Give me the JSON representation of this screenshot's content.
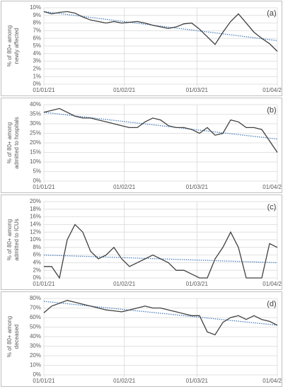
{
  "chart_data": [
    {
      "type": "line",
      "annotation": "(a)",
      "y_label": [
        "% of 80+ among",
        "newly affected"
      ],
      "x": [
        0,
        3,
        6,
        9,
        12,
        15,
        18,
        21,
        24,
        27,
        30,
        33,
        36,
        39,
        42,
        45,
        48,
        51,
        54,
        57,
        60,
        63,
        66,
        69,
        72,
        75,
        78,
        81,
        84,
        87,
        90
      ],
      "xlim": [
        0,
        90
      ],
      "xticks": [
        {
          "value": 0,
          "label": "01/01/21"
        },
        {
          "value": 31,
          "label": "01/02/21"
        },
        {
          "value": 59,
          "label": "01/03/21"
        },
        {
          "value": 90,
          "label": "01/04/2"
        }
      ],
      "ylim": [
        0,
        10
      ],
      "yticks": [
        {
          "value": 0,
          "label": "0%"
        },
        {
          "value": 1,
          "label": "1%"
        },
        {
          "value": 2,
          "label": "2%"
        },
        {
          "value": 3,
          "label": "3%"
        },
        {
          "value": 4,
          "label": "4%"
        },
        {
          "value": 5,
          "label": "5%"
        },
        {
          "value": 6,
          "label": "6%"
        },
        {
          "value": 7,
          "label": "7%"
        },
        {
          "value": 8,
          "label": "8%"
        },
        {
          "value": 9,
          "label": "9%"
        },
        {
          "value": 10,
          "label": "10%"
        }
      ],
      "grid": true,
      "series": [
        {
          "color": "#404040",
          "values": [
            9.5,
            9.2,
            9.4,
            9.5,
            9.3,
            8.8,
            8.4,
            8.2,
            8.0,
            8.2,
            8.0,
            8.1,
            8.2,
            8.0,
            7.7,
            7.5,
            7.3,
            7.5,
            7.9,
            8.0,
            7.2,
            6.2,
            5.2,
            6.8,
            8.2,
            9.2,
            8.0,
            6.8,
            6.0,
            5.3,
            4.3
          ]
        }
      ],
      "trend": {
        "color": "#4a7ebb",
        "values": [
          9.5,
          5.7
        ]
      }
    },
    {
      "type": "line",
      "annotation": "(b)",
      "y_label": [
        "% of 80+ among",
        "admitted to hospitals"
      ],
      "x": [
        0,
        3,
        6,
        9,
        12,
        15,
        18,
        21,
        24,
        27,
        30,
        33,
        36,
        39,
        42,
        45,
        48,
        51,
        54,
        57,
        60,
        63,
        66,
        69,
        72,
        75,
        78,
        81,
        84,
        87,
        90
      ],
      "xlim": [
        0,
        90
      ],
      "xticks": [
        {
          "value": 0,
          "label": "01/01/21"
        },
        {
          "value": 31,
          "label": "01/02/21"
        },
        {
          "value": 59,
          "label": "01/03/21"
        },
        {
          "value": 90,
          "label": "01/04/2"
        }
      ],
      "ylim": [
        0,
        40
      ],
      "yticks": [
        {
          "value": 0,
          "label": "0%"
        },
        {
          "value": 5,
          "label": "5%"
        },
        {
          "value": 10,
          "label": "10%"
        },
        {
          "value": 15,
          "label": "15%"
        },
        {
          "value": 20,
          "label": "20%"
        },
        {
          "value": 25,
          "label": "25%"
        },
        {
          "value": 30,
          "label": "30%"
        },
        {
          "value": 35,
          "label": "35%"
        },
        {
          "value": 40,
          "label": "40%"
        }
      ],
      "grid": true,
      "series": [
        {
          "color": "#404040",
          "values": [
            36,
            37,
            38,
            36,
            34,
            33,
            33,
            32,
            31,
            30,
            29,
            28,
            28,
            31,
            33,
            32,
            29,
            28,
            28,
            27,
            25,
            28,
            24,
            25,
            32,
            31,
            28,
            28,
            27,
            21,
            15
          ]
        }
      ],
      "trend": {
        "color": "#4a7ebb",
        "values": [
          36,
          22
        ]
      }
    },
    {
      "type": "line",
      "annotation": "(c)",
      "y_label": [
        "% of 80+ among",
        "admitted to ICUs"
      ],
      "x": [
        0,
        3,
        6,
        9,
        12,
        15,
        18,
        21,
        24,
        27,
        30,
        33,
        36,
        39,
        42,
        45,
        48,
        51,
        54,
        57,
        60,
        63,
        66,
        69,
        72,
        75,
        78,
        81,
        84,
        87,
        90
      ],
      "xlim": [
        0,
        90
      ],
      "xticks": [
        {
          "value": 0,
          "label": "01/01/21"
        },
        {
          "value": 31,
          "label": "01/02/21"
        },
        {
          "value": 59,
          "label": "01/03/21"
        },
        {
          "value": 90,
          "label": "01/04/2"
        }
      ],
      "ylim": [
        0,
        20
      ],
      "yticks": [
        {
          "value": 0,
          "label": "0%"
        },
        {
          "value": 2,
          "label": "2%"
        },
        {
          "value": 4,
          "label": "4%"
        },
        {
          "value": 6,
          "label": "6%"
        },
        {
          "value": 8,
          "label": "8%"
        },
        {
          "value": 10,
          "label": "10%"
        },
        {
          "value": 12,
          "label": "12%"
        },
        {
          "value": 14,
          "label": "14%"
        },
        {
          "value": 16,
          "label": "16%"
        },
        {
          "value": 18,
          "label": "18%"
        },
        {
          "value": 20,
          "label": "20%"
        }
      ],
      "grid": true,
      "series": [
        {
          "color": "#404040",
          "values": [
            3,
            3,
            0,
            10,
            14,
            12,
            7,
            5,
            6,
            8,
            5,
            3,
            4,
            5,
            6,
            5,
            4,
            2,
            2,
            1,
            0,
            0,
            5,
            8,
            12,
            8,
            0,
            0,
            0,
            9,
            8
          ]
        }
      ],
      "trend": {
        "color": "#4a7ebb",
        "values": [
          6,
          4
        ]
      }
    },
    {
      "type": "line",
      "annotation": "(d)",
      "y_label": [
        "% of 80+ among",
        "deceased"
      ],
      "x": [
        0,
        3,
        6,
        9,
        12,
        15,
        18,
        21,
        24,
        27,
        30,
        33,
        36,
        39,
        42,
        45,
        48,
        51,
        54,
        57,
        60,
        63,
        66,
        69,
        72,
        75,
        78,
        81,
        84,
        87,
        90
      ],
      "xlim": [
        0,
        90
      ],
      "xticks": [
        {
          "value": 0,
          "label": "01/01/21"
        },
        {
          "value": 31,
          "label": "01/02/21"
        },
        {
          "value": 59,
          "label": "01/03/21"
        },
        {
          "value": 90,
          "label": "01/04/2"
        }
      ],
      "ylim": [
        0,
        80
      ],
      "yticks": [
        {
          "value": 0,
          "label": "0%"
        },
        {
          "value": 10,
          "label": "10%"
        },
        {
          "value": 20,
          "label": "20%"
        },
        {
          "value": 30,
          "label": "30%"
        },
        {
          "value": 40,
          "label": "40%"
        },
        {
          "value": 50,
          "label": "50%"
        },
        {
          "value": 60,
          "label": "60%"
        },
        {
          "value": 70,
          "label": "70%"
        },
        {
          "value": 80,
          "label": "80%"
        }
      ],
      "grid": true,
      "series": [
        {
          "color": "#404040",
          "values": [
            65,
            72,
            75,
            78,
            76,
            74,
            72,
            70,
            68,
            67,
            66,
            68,
            70,
            72,
            70,
            70,
            68,
            66,
            64,
            62,
            62,
            45,
            42,
            55,
            60,
            62,
            58,
            62,
            58,
            56,
            52
          ]
        }
      ],
      "trend": {
        "color": "#4a7ebb",
        "values": [
          77,
          52
        ]
      }
    }
  ]
}
